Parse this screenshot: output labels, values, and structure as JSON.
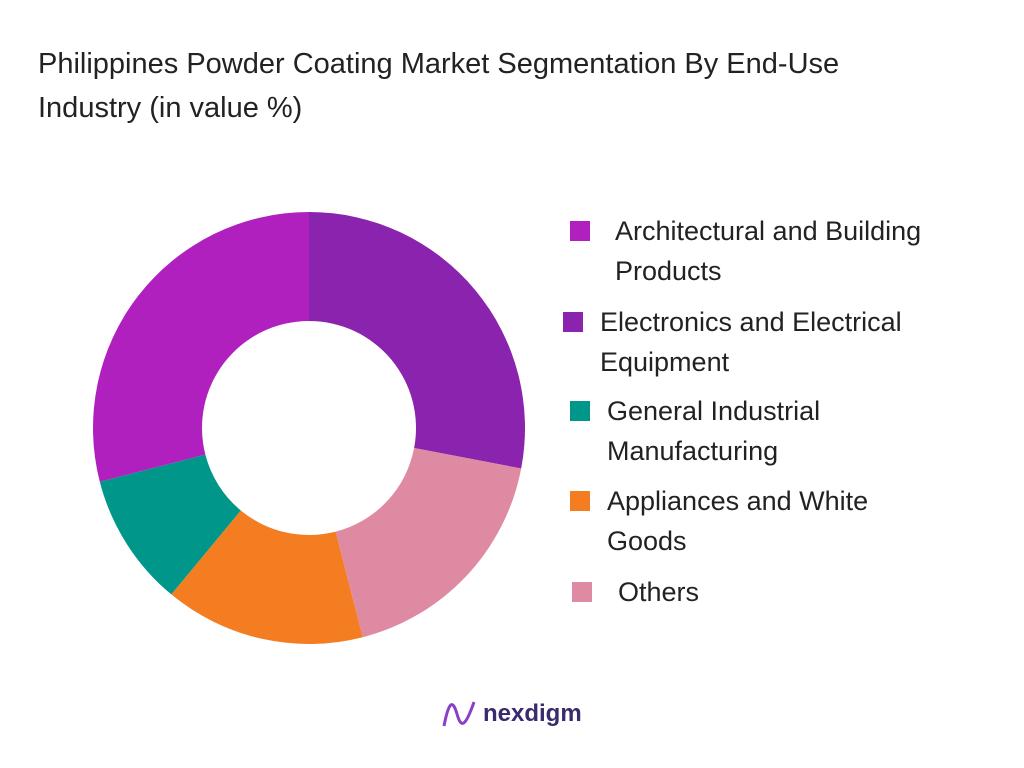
{
  "chart_data": {
    "type": "donut",
    "title": "Philippines Powder Coating Market Segmentation By End-Use Industry (in value %)",
    "categories": [
      "Electronics and Electrical Equipment",
      "Others",
      "Appliances and White Goods",
      "General Industrial Manufacturing",
      "Architectural and Building Products"
    ],
    "values": [
      28,
      18,
      15,
      10,
      29
    ],
    "colors": [
      "#8a23ad",
      "#de8aa2",
      "#f47d22",
      "#00978a",
      "#b020bf"
    ]
  },
  "logo": "nexdigm"
}
